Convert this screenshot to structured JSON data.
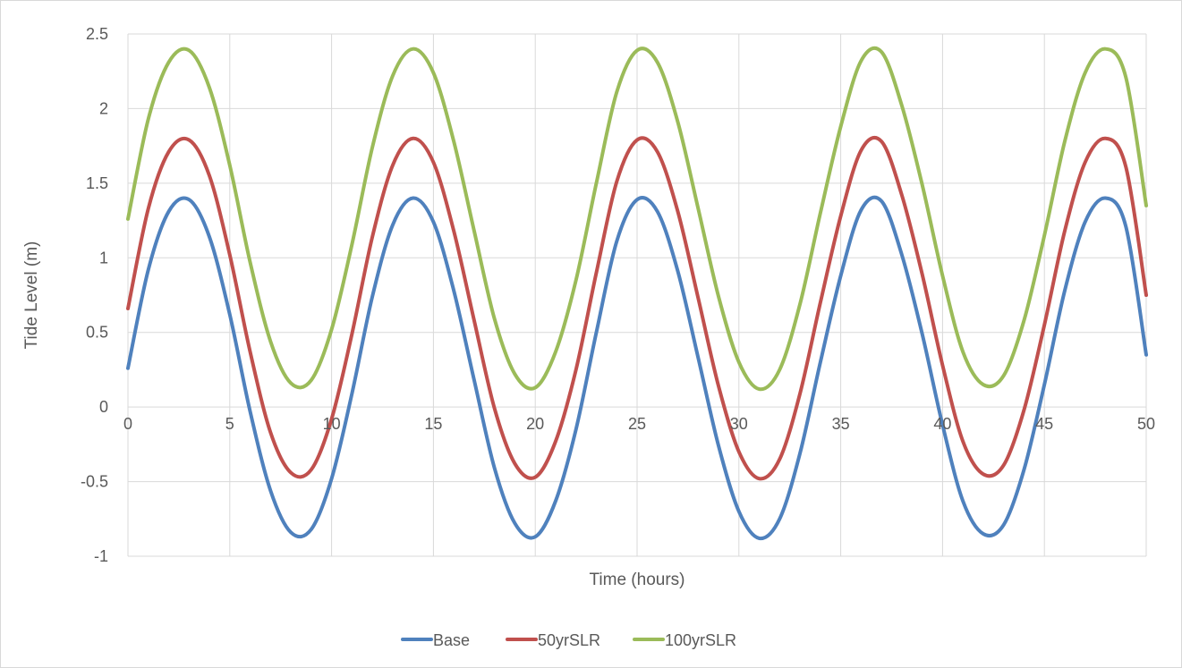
{
  "chart_data": {
    "type": "line",
    "title": "",
    "xlabel": "Time (hours)",
    "ylabel": "Tide Level (m)",
    "xlim": [
      0,
      50
    ],
    "ylim": [
      -1,
      2.5
    ],
    "x_ticks": [
      "0",
      "5",
      "10",
      "15",
      "20",
      "25",
      "30",
      "35",
      "40",
      "45",
      "50"
    ],
    "y_ticks": [
      "2.5",
      "2",
      "1.5",
      "1",
      "0.5",
      "0",
      "-0.5",
      "-1"
    ],
    "grid": true,
    "legend_position": "bottom",
    "x": [
      0,
      1,
      2,
      3,
      4,
      5,
      6,
      7,
      8,
      9,
      10,
      11,
      12,
      13,
      14,
      15,
      16,
      17,
      18,
      19,
      20,
      21,
      22,
      23,
      24,
      25,
      26,
      27,
      28,
      29,
      30,
      31,
      32,
      33,
      34,
      35,
      36,
      37,
      38,
      39,
      40,
      41,
      42,
      43,
      44,
      45,
      46,
      47,
      48,
      49,
      50
    ],
    "series": [
      {
        "name": "Base",
        "color": "#4f81bd",
        "values": [
          0.26,
          0.92,
          1.31,
          1.39,
          1.14,
          0.62,
          -0.03,
          -0.56,
          -0.84,
          -0.82,
          -0.48,
          0.09,
          0.74,
          1.22,
          1.4,
          1.24,
          0.78,
          0.18,
          -0.41,
          -0.78,
          -0.87,
          -0.63,
          -0.15,
          0.5,
          1.11,
          1.39,
          1.31,
          0.91,
          0.33,
          -0.26,
          -0.7,
          -0.88,
          -0.75,
          -0.31,
          0.3,
          0.88,
          1.32,
          1.38,
          1.02,
          0.49,
          -0.12,
          -0.63,
          -0.85,
          -0.79,
          -0.42,
          0.15,
          0.78,
          1.24,
          1.4,
          1.21,
          0.35
        ]
      },
      {
        "name": "50yrSLR",
        "color": "#c0504d",
        "values": [
          0.66,
          1.33,
          1.71,
          1.79,
          1.55,
          1.02,
          0.37,
          -0.17,
          -0.44,
          -0.42,
          -0.08,
          0.49,
          1.14,
          1.62,
          1.8,
          1.64,
          1.18,
          0.58,
          -0.01,
          -0.38,
          -0.47,
          -0.23,
          0.25,
          0.9,
          1.51,
          1.79,
          1.71,
          1.31,
          0.73,
          0.14,
          -0.3,
          -0.48,
          -0.35,
          0.09,
          0.7,
          1.28,
          1.72,
          1.78,
          1.42,
          0.89,
          0.28,
          -0.23,
          -0.45,
          -0.39,
          -0.02,
          0.55,
          1.18,
          1.64,
          1.8,
          1.61,
          0.75
        ]
      },
      {
        "name": "100yrSLR",
        "color": "#9bbb59",
        "values": [
          1.26,
          1.93,
          2.31,
          2.39,
          2.14,
          1.62,
          0.97,
          0.44,
          0.16,
          0.18,
          0.52,
          1.09,
          1.74,
          2.22,
          2.4,
          2.24,
          1.78,
          1.18,
          0.59,
          0.22,
          0.13,
          0.37,
          0.85,
          1.5,
          2.11,
          2.39,
          2.31,
          1.91,
          1.33,
          0.74,
          0.3,
          0.12,
          0.25,
          0.69,
          1.3,
          1.88,
          2.32,
          2.38,
          2.02,
          1.49,
          0.88,
          0.37,
          0.15,
          0.21,
          0.58,
          1.15,
          1.78,
          2.24,
          2.4,
          2.21,
          1.35
        ]
      }
    ]
  }
}
